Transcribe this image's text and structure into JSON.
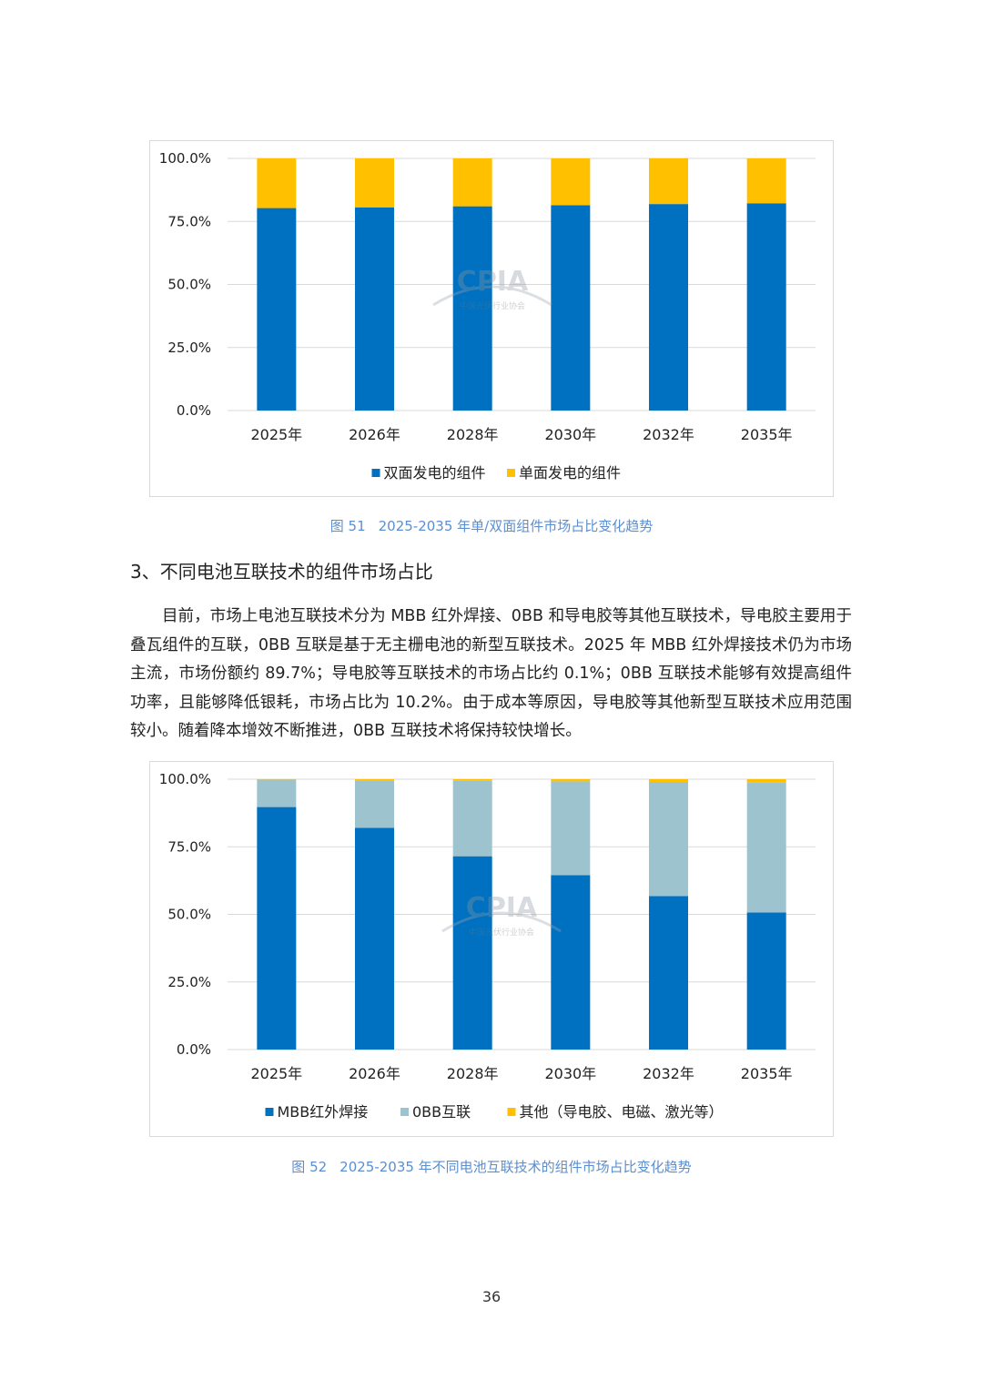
{
  "figure1": {
    "caption_num": "图 51",
    "caption_text": "2025-2035 年单/双面组件市场占比变化趋势"
  },
  "figure2": {
    "caption_num": "图 52",
    "caption_text": "2025-2035 年不同电池互联技术的组件市场占比变化趋势"
  },
  "section": {
    "heading": "3、不同电池互联技术的组件市场占比",
    "paragraph": "目前，市场上电池互联技术分为 MBB 红外焊接、0BB 和导电胶等其他互联技术，导电胶主要用于叠瓦组件的互联，0BB 互联是基于无主栅电池的新型互联技术。2025 年 MBB 红外焊接技术仍为市场主流，市场份额约 89.7%；导电胶等互联技术的市场占比约 0.1%；0BB 互联技术能够有效提高组件功率，且能够降低银耗，市场占比为 10.2%。由于成本等原因，导电胶等其他新型互联技术应用范围较小。随着降本增效不断推进，0BB 互联技术将保持较快增长。"
  },
  "page_number": "36",
  "watermark": {
    "logo_text": "CPIA",
    "org_text": "中国光伏行业协会"
  },
  "chart_data": [
    {
      "type": "bar",
      "stacked": true,
      "categories": [
        "2025年",
        "2026年",
        "2028年",
        "2030年",
        "2032年",
        "2035年"
      ],
      "series": [
        {
          "name": "双面发电的组件",
          "color": "#0070c0",
          "values": [
            80.3,
            80.6,
            81.0,
            81.4,
            81.9,
            82.2
          ]
        },
        {
          "name": "单面发电的组件",
          "color": "#ffc000",
          "values": [
            19.7,
            19.4,
            19.0,
            18.6,
            18.1,
            17.8
          ]
        }
      ],
      "ylim": [
        0,
        100
      ],
      "yticks": [
        "0.0%",
        "25.0%",
        "50.0%",
        "75.0%",
        "100.0%"
      ],
      "grid": true,
      "legend_position": "bottom"
    },
    {
      "type": "bar",
      "stacked": true,
      "categories": [
        "2025年",
        "2026年",
        "2028年",
        "2030年",
        "2032年",
        "2035年"
      ],
      "series": [
        {
          "name": "MBB红外焊接",
          "color": "#0070c0",
          "values": [
            89.7,
            82.0,
            71.5,
            64.5,
            56.8,
            50.7
          ]
        },
        {
          "name": "0BB互联",
          "color": "#9dc3cf",
          "values": [
            10.2,
            17.6,
            27.9,
            34.7,
            42.2,
            48.0
          ]
        },
        {
          "name": "其他（导电胶、电磁、激光等）",
          "color": "#ffc000",
          "values": [
            0.1,
            0.4,
            0.6,
            0.8,
            1.0,
            1.3
          ]
        }
      ],
      "ylim": [
        0,
        100
      ],
      "yticks": [
        "0.0%",
        "25.0%",
        "50.0%",
        "75.0%",
        "100.0%"
      ],
      "grid": true,
      "legend_position": "bottom"
    }
  ]
}
